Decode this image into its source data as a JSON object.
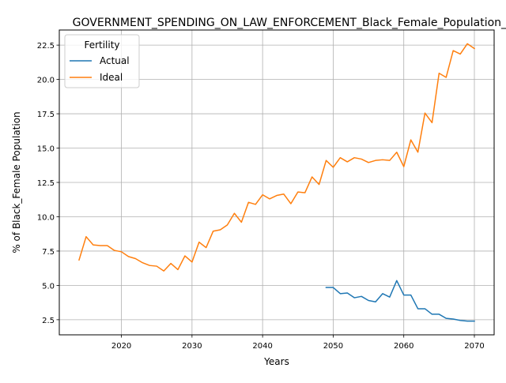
{
  "chart_data": {
    "type": "line",
    "title": "GOVERNMENT_SPENDING_ON_LAW_ENFORCEMENT_Black_Female_Population_s",
    "xlabel": "Years",
    "ylabel": "% of Black_Female Population",
    "xlim": [
      2011.2,
      2072.8
    ],
    "ylim": [
      1.4,
      23.6
    ],
    "xticks": [
      2020,
      2030,
      2040,
      2050,
      2060,
      2070
    ],
    "yticks": [
      2.5,
      5.0,
      7.5,
      10.0,
      12.5,
      15.0,
      17.5,
      20.0,
      22.5
    ],
    "ytick_labels": [
      "2.5",
      "5.0",
      "7.5",
      "10.0",
      "12.5",
      "15.0",
      "17.5",
      "20.0",
      "22.5"
    ],
    "grid": true,
    "legend": {
      "title": "Fertility",
      "placement": "top-left"
    },
    "series": [
      {
        "name": "Actual",
        "color": "#1f77b4",
        "x": [
          2049,
          2050,
          2051,
          2052,
          2053,
          2054,
          2055,
          2056,
          2057,
          2058,
          2059,
          2060,
          2061,
          2062,
          2063,
          2064,
          2065,
          2066,
          2067,
          2068,
          2069,
          2070
        ],
        "values": [
          4.85,
          4.85,
          4.4,
          4.45,
          4.1,
          4.2,
          3.9,
          3.8,
          4.4,
          4.15,
          5.35,
          4.3,
          4.3,
          3.3,
          3.3,
          2.9,
          2.9,
          2.6,
          2.55,
          2.45,
          2.4,
          2.4
        ]
      },
      {
        "name": "Ideal",
        "color": "#ff7f0e",
        "x": [
          2014,
          2015,
          2016,
          2017,
          2018,
          2019,
          2020,
          2021,
          2022,
          2023,
          2024,
          2025,
          2026,
          2027,
          2028,
          2029,
          2030,
          2031,
          2032,
          2033,
          2034,
          2035,
          2036,
          2037,
          2038,
          2039,
          2040,
          2041,
          2042,
          2043,
          2044,
          2045,
          2046,
          2047,
          2048,
          2049,
          2050,
          2051,
          2052,
          2053,
          2054,
          2055,
          2056,
          2057,
          2058,
          2059,
          2060,
          2061,
          2062,
          2063,
          2064,
          2065,
          2066,
          2067,
          2068,
          2069,
          2070
        ],
        "values": [
          6.85,
          8.55,
          7.95,
          7.9,
          7.9,
          7.55,
          7.45,
          7.1,
          6.95,
          6.65,
          6.45,
          6.4,
          6.05,
          6.6,
          6.15,
          7.15,
          6.7,
          8.15,
          7.75,
          8.95,
          9.05,
          9.4,
          10.25,
          9.6,
          11.05,
          10.9,
          11.6,
          11.3,
          11.55,
          11.65,
          10.95,
          11.8,
          11.75,
          12.9,
          12.35,
          14.1,
          13.6,
          14.3,
          14.0,
          14.3,
          14.2,
          13.95,
          14.1,
          14.15,
          14.1,
          14.7,
          13.65,
          15.6,
          14.7,
          17.55,
          16.85,
          20.45,
          20.15,
          22.1,
          21.85,
          22.6,
          22.25
        ]
      }
    ]
  }
}
